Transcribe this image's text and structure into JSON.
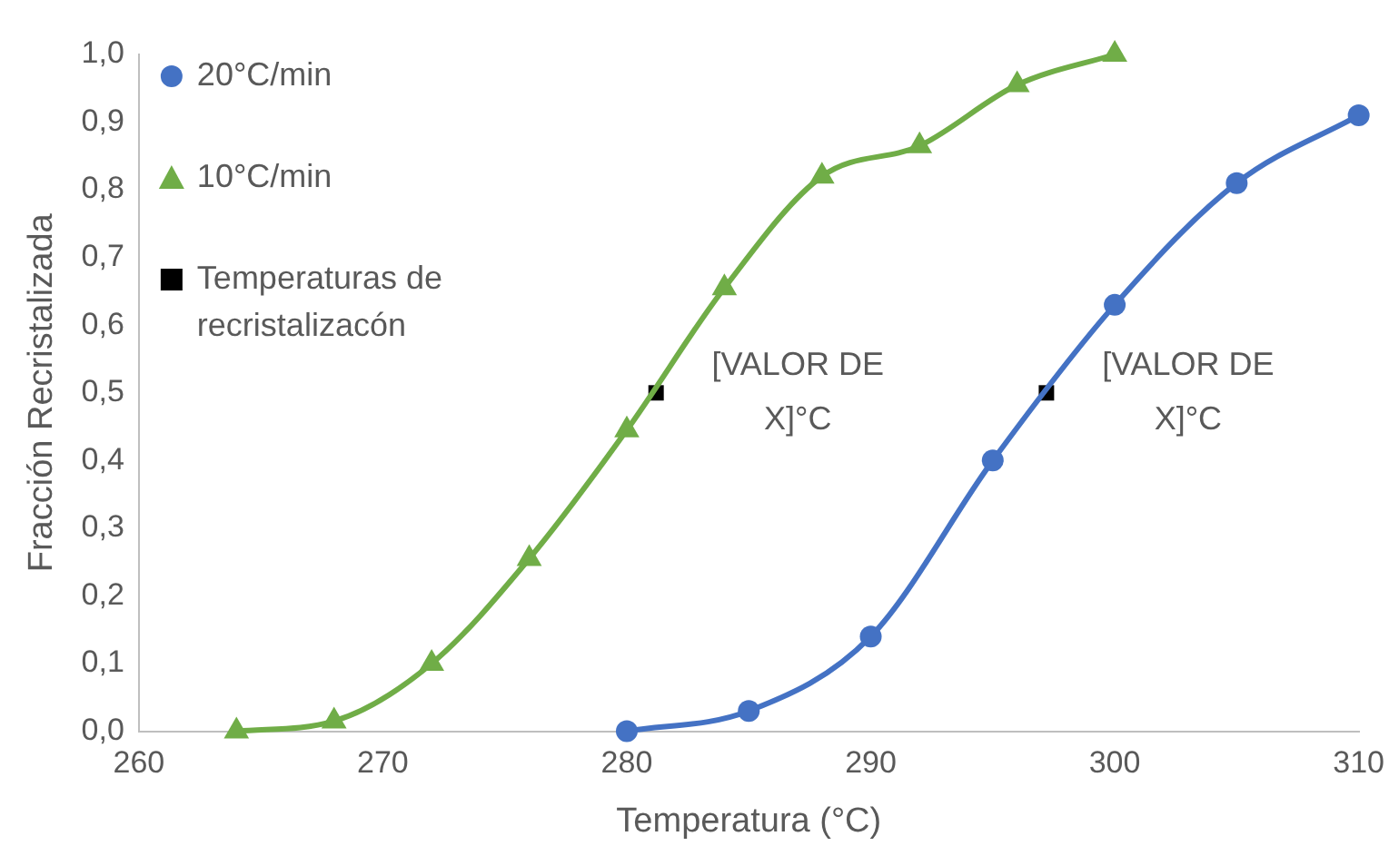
{
  "chart_data": {
    "type": "line",
    "xlabel": "Temperatura (°C)",
    "ylabel": "Fracción Recristalizada",
    "xlim": [
      260,
      310
    ],
    "xticks": [
      260,
      270,
      280,
      290,
      300,
      310
    ],
    "ylim": [
      0,
      1
    ],
    "yticks": [
      {
        "value": 0,
        "label": "0,0"
      },
      {
        "value": 0.1,
        "label": "0,1"
      },
      {
        "value": 0.2,
        "label": "0,2"
      },
      {
        "value": 0.3,
        "label": "0,3"
      },
      {
        "value": 0.4,
        "label": "0,4"
      },
      {
        "value": 0.5,
        "label": "0,5"
      },
      {
        "value": 0.6,
        "label": "0,6"
      },
      {
        "value": 0.7,
        "label": "0,7"
      },
      {
        "value": 0.8,
        "label": "0,8"
      },
      {
        "value": 0.9,
        "label": "0,9"
      },
      {
        "value": 1,
        "label": "1,0"
      }
    ],
    "grid": false,
    "legend": "top left",
    "line_style": "solid",
    "series": [
      {
        "name": "20°C/min",
        "marker": "circle",
        "color": "#4472c4",
        "x": [
          280,
          285,
          290,
          295,
          300,
          305,
          310
        ],
        "values": [
          0,
          0.03,
          0.14,
          0.4,
          0.63,
          0.81,
          0.91
        ]
      },
      {
        "name": "10°C/min",
        "marker": "triangle",
        "color": "#70ad47",
        "x": [
          264,
          268,
          272,
          276,
          280,
          284,
          288,
          292,
          296,
          300
        ],
        "values": [
          0,
          0.015,
          0.1,
          0.255,
          0.445,
          0.655,
          0.82,
          0.865,
          0.955,
          1
        ]
      },
      {
        "name": "Temperaturas de recristalizacón",
        "type": "scatter",
        "marker": "square",
        "color": "#000000",
        "x": [
          281.2,
          297.2
        ],
        "values": [
          0.5,
          0.5
        ]
      }
    ],
    "annotations": [
      {
        "text": "[VALOR DE X]°C",
        "x": 281.2,
        "y": 0.5
      },
      {
        "text": "[VALOR DE X]°C",
        "x": 297.2,
        "y": 0.5
      }
    ]
  }
}
